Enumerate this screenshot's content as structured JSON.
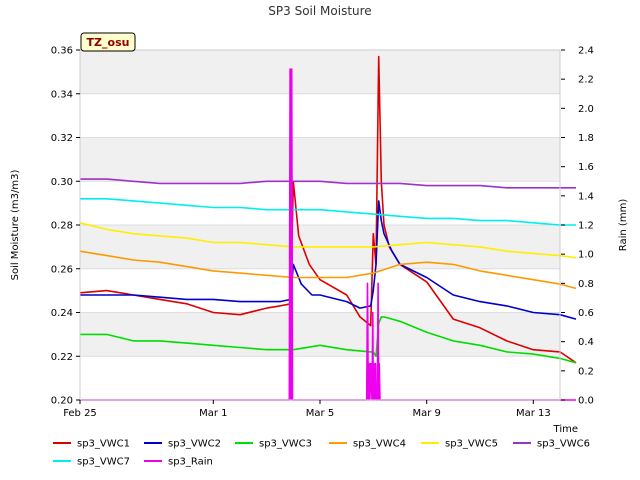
{
  "chart_data": {
    "type": "line",
    "title": "SP3 Soil Moisture",
    "badge": "TZ_osu",
    "xlabel": "Time",
    "ylabel": "Soil Moisture (m3/m3)",
    "y2label": "Rain (mm)",
    "xlim": [
      0,
      18
    ],
    "ylim": [
      0.2,
      0.36
    ],
    "y2lim": [
      0,
      2.4
    ],
    "x_ticks": [
      {
        "x": 0,
        "label": "Feb 25"
      },
      {
        "x": 5,
        "label": "Mar 1"
      },
      {
        "x": 9,
        "label": "Mar 5"
      },
      {
        "x": 13,
        "label": "Mar 9"
      },
      {
        "x": 17,
        "label": "Mar 13"
      }
    ],
    "y_ticks": [
      "0.20",
      "0.22",
      "0.24",
      "0.26",
      "0.28",
      "0.30",
      "0.32",
      "0.34",
      "0.36"
    ],
    "y2_ticks": [
      "0.0",
      "0.2",
      "0.4",
      "0.6",
      "0.8",
      "1.0",
      "1.2",
      "1.4",
      "1.6",
      "1.8",
      "2.0",
      "2.2",
      "2.4"
    ],
    "grid": true,
    "legend_position": "bottom",
    "x_days": "0 = Feb 25, daily step, 18.7 days",
    "series": [
      {
        "name": "sp3_VWC1",
        "color": "#dd0000",
        "axis": "left",
        "x": [
          0,
          1,
          2,
          3,
          4,
          5,
          6,
          7,
          7.5,
          7.9,
          8.0,
          8.2,
          8.6,
          9,
          10,
          10.5,
          10.9,
          11.0,
          11.1,
          11.2,
          11.3,
          11.4,
          11.6,
          12,
          13,
          14,
          15,
          16,
          17,
          18,
          18.6
        ],
        "y": [
          0.249,
          0.25,
          0.248,
          0.246,
          0.244,
          0.24,
          0.239,
          0.242,
          0.243,
          0.244,
          0.3,
          0.275,
          0.262,
          0.255,
          0.248,
          0.238,
          0.234,
          0.276,
          0.262,
          0.357,
          0.3,
          0.28,
          0.27,
          0.262,
          0.254,
          0.237,
          0.233,
          0.227,
          0.223,
          0.222,
          0.217
        ]
      },
      {
        "name": "sp3_VWC2",
        "color": "#0000cc",
        "axis": "left",
        "x": [
          0,
          1,
          2,
          3,
          4,
          5,
          6,
          7,
          7.5,
          7.9,
          8.0,
          8.3,
          8.7,
          9,
          10,
          10.5,
          10.9,
          11.0,
          11.1,
          11.2,
          11.3,
          11.4,
          11.7,
          12,
          13,
          14,
          15,
          16,
          17,
          18,
          18.6
        ],
        "y": [
          0.248,
          0.248,
          0.248,
          0.247,
          0.246,
          0.246,
          0.245,
          0.245,
          0.245,
          0.246,
          0.262,
          0.253,
          0.248,
          0.248,
          0.245,
          0.242,
          0.243,
          0.25,
          0.262,
          0.291,
          0.282,
          0.276,
          0.268,
          0.262,
          0.256,
          0.248,
          0.245,
          0.243,
          0.24,
          0.239,
          0.237
        ]
      },
      {
        "name": "sp3_VWC3",
        "color": "#00dd00",
        "axis": "left",
        "x": [
          0,
          1,
          2,
          3,
          4,
          5,
          6,
          7,
          8,
          9,
          10,
          10.9,
          11.0,
          11.1,
          11.2,
          11.3,
          11.4,
          12,
          13,
          14,
          15,
          16,
          17,
          18,
          18.6
        ],
        "y": [
          0.23,
          0.23,
          0.227,
          0.227,
          0.226,
          0.225,
          0.224,
          0.223,
          0.223,
          0.225,
          0.223,
          0.222,
          0.222,
          0.22,
          0.235,
          0.238,
          0.238,
          0.236,
          0.231,
          0.227,
          0.225,
          0.222,
          0.221,
          0.219,
          0.217
        ]
      },
      {
        "name": "sp3_VWC4",
        "color": "#ff9900",
        "axis": "left",
        "x": [
          0,
          1,
          2,
          3,
          4,
          5,
          6,
          7,
          8,
          9,
          10,
          11,
          12,
          13,
          14,
          15,
          16,
          17,
          18,
          18.6
        ],
        "y": [
          0.268,
          0.266,
          0.264,
          0.263,
          0.261,
          0.259,
          0.258,
          0.257,
          0.256,
          0.256,
          0.256,
          0.258,
          0.262,
          0.263,
          0.262,
          0.259,
          0.257,
          0.255,
          0.253,
          0.251
        ]
      },
      {
        "name": "sp3_VWC5",
        "color": "#ffee00",
        "axis": "left",
        "x": [
          0,
          1,
          2,
          3,
          4,
          5,
          6,
          7,
          8,
          9,
          10,
          11,
          12,
          13,
          14,
          15,
          16,
          17,
          18,
          18.6
        ],
        "y": [
          0.281,
          0.278,
          0.276,
          0.275,
          0.274,
          0.272,
          0.272,
          0.271,
          0.27,
          0.27,
          0.27,
          0.27,
          0.271,
          0.272,
          0.271,
          0.27,
          0.268,
          0.267,
          0.266,
          0.265
        ]
      },
      {
        "name": "sp3_VWC6",
        "color": "#9933cc",
        "axis": "left",
        "x": [
          0,
          1,
          2,
          3,
          4,
          5,
          6,
          7,
          8,
          9,
          10,
          11,
          12,
          13,
          14,
          15,
          16,
          17,
          18,
          18.6
        ],
        "y": [
          0.301,
          0.301,
          0.3,
          0.299,
          0.299,
          0.299,
          0.299,
          0.3,
          0.3,
          0.3,
          0.299,
          0.299,
          0.299,
          0.298,
          0.298,
          0.298,
          0.297,
          0.297,
          0.297,
          0.297
        ]
      },
      {
        "name": "sp3_VWC7",
        "color": "#00eeee",
        "axis": "left",
        "x": [
          0,
          1,
          2,
          3,
          4,
          5,
          6,
          7,
          8,
          9,
          10,
          11,
          12,
          13,
          14,
          15,
          16,
          17,
          18,
          18.6
        ],
        "y": [
          0.292,
          0.292,
          0.291,
          0.29,
          0.289,
          0.288,
          0.288,
          0.287,
          0.287,
          0.287,
          0.286,
          0.285,
          0.284,
          0.283,
          0.283,
          0.282,
          0.282,
          0.281,
          0.28,
          0.28
        ]
      },
      {
        "name": "sp3_Rain",
        "color": "#ee00ee",
        "axis": "right",
        "x": [
          0,
          7.85,
          7.88,
          7.91,
          7.94,
          7.97,
          10.75,
          10.78,
          10.81,
          10.84,
          10.87,
          10.9,
          10.95,
          10.98,
          11.0,
          11.02,
          11.05,
          11.08,
          11.1,
          11.15,
          11.18,
          11.2,
          11.22,
          11.25,
          18.6
        ],
        "y": [
          0,
          0,
          2.27,
          0,
          2.27,
          0,
          0,
          0.8,
          0,
          0.25,
          0,
          0.25,
          0,
          0.6,
          0,
          0.25,
          0,
          0.25,
          0,
          0,
          0.8,
          0,
          0.25,
          0,
          0
        ]
      }
    ]
  }
}
